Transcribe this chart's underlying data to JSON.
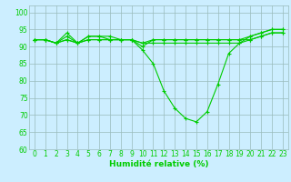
{
  "x": [
    0,
    1,
    2,
    3,
    4,
    5,
    6,
    7,
    8,
    9,
    10,
    11,
    12,
    13,
    14,
    15,
    16,
    17,
    18,
    19,
    20,
    21,
    22,
    23
  ],
  "line1": [
    92,
    92,
    91,
    94,
    91,
    93,
    93,
    93,
    92,
    92,
    89,
    85,
    77,
    72,
    69,
    68,
    71,
    79,
    88,
    91,
    93,
    94,
    95,
    95
  ],
  "line2": [
    92,
    92,
    91,
    93,
    91,
    93,
    93,
    92,
    92,
    92,
    90,
    92,
    92,
    92,
    92,
    92,
    92,
    92,
    92,
    92,
    93,
    94,
    95,
    95
  ],
  "line3": [
    92,
    92,
    91,
    92,
    91,
    92,
    92,
    92,
    92,
    92,
    91,
    92,
    92,
    92,
    92,
    92,
    92,
    92,
    92,
    92,
    92,
    93,
    94,
    94
  ],
  "line4": [
    92,
    92,
    91,
    92,
    91,
    92,
    92,
    92,
    92,
    92,
    91,
    91,
    91,
    91,
    91,
    91,
    91,
    91,
    91,
    91,
    92,
    93,
    94,
    94
  ],
  "xlabel": "Humidité relative (%)",
  "ylim": [
    60,
    102
  ],
  "yticks": [
    60,
    65,
    70,
    75,
    80,
    85,
    90,
    95,
    100
  ],
  "xticks": [
    0,
    1,
    2,
    3,
    4,
    5,
    6,
    7,
    8,
    9,
    10,
    11,
    12,
    13,
    14,
    15,
    16,
    17,
    18,
    19,
    20,
    21,
    22,
    23
  ],
  "line_color": "#00cc00",
  "bg_color": "#cceeff",
  "grid_color": "#99bbbb",
  "xlabel_fontsize": 6.5,
  "tick_fontsize": 5.5
}
